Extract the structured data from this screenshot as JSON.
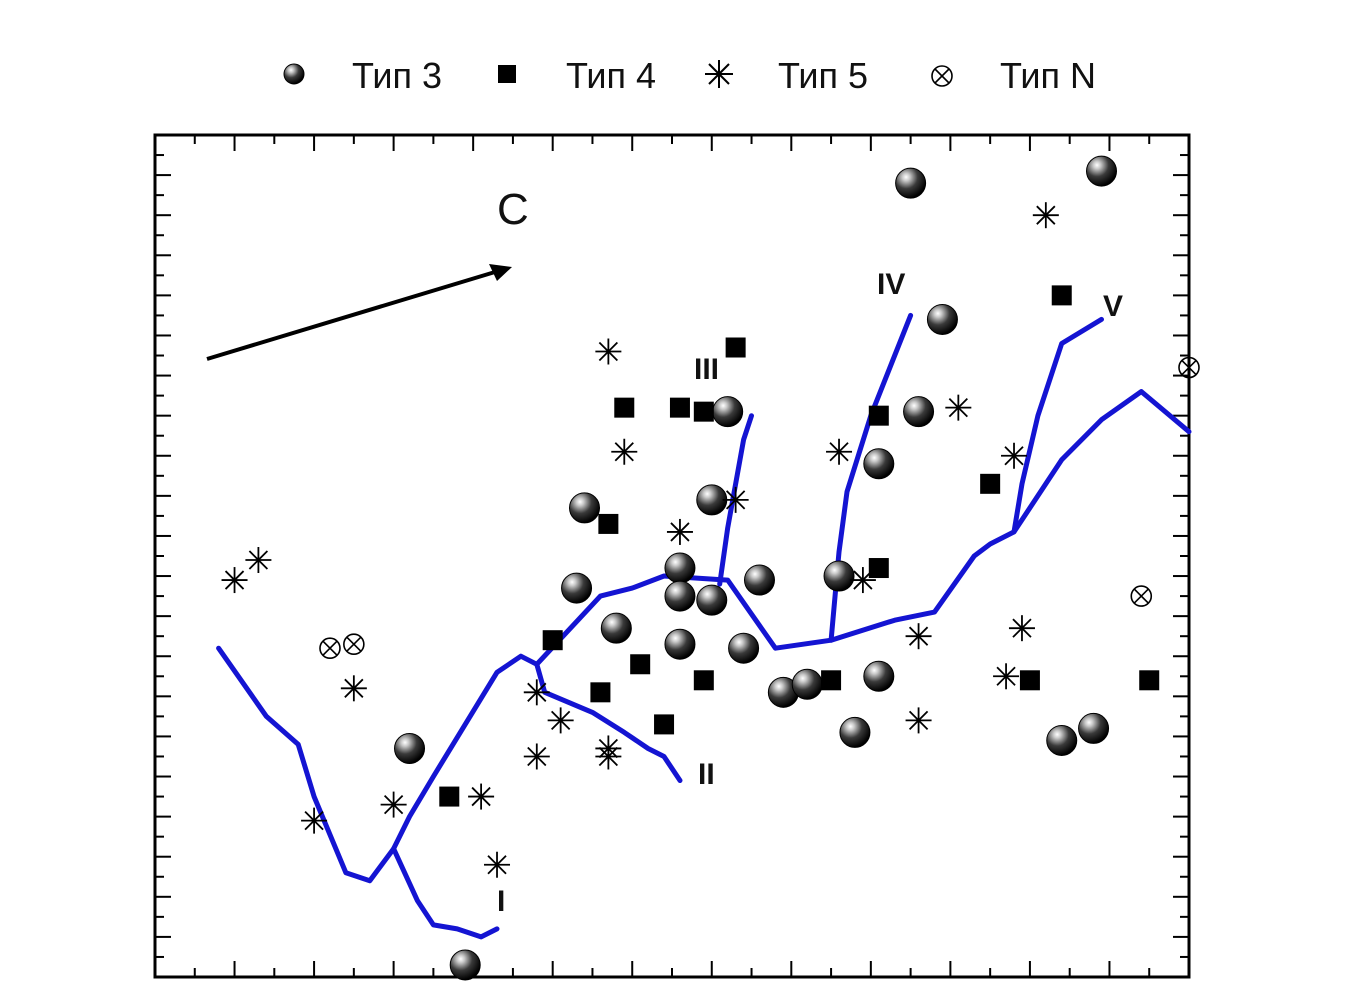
{
  "chart_data": {
    "type": "scatter",
    "title": "",
    "xlabel": "",
    "ylabel": "",
    "xlim": [
      0,
      13
    ],
    "ylim": [
      0,
      21
    ],
    "grid": false,
    "legend_position": "top",
    "tick_labels_shown": false,
    "legend": [
      {
        "label": "Тип 3",
        "marker": "sphere"
      },
      {
        "label": "Тип 4",
        "marker": "square"
      },
      {
        "label": "Тип 5",
        "marker": "asterisk"
      },
      {
        "label": "Тип N",
        "marker": "circle-x"
      }
    ],
    "series": [
      {
        "name": "Тип 3",
        "marker": "sphere",
        "points": [
          [
            9.5,
            19.8
          ],
          [
            11.9,
            20.1
          ],
          [
            9.9,
            16.4
          ],
          [
            7.2,
            14.1
          ],
          [
            9.6,
            14.1
          ],
          [
            9.1,
            12.8
          ],
          [
            5.4,
            11.7
          ],
          [
            7.0,
            11.9
          ],
          [
            6.6,
            10.2
          ],
          [
            5.3,
            9.7
          ],
          [
            8.6,
            10.0
          ],
          [
            7.6,
            9.9
          ],
          [
            6.6,
            9.5
          ],
          [
            7.0,
            9.4
          ],
          [
            5.8,
            8.7
          ],
          [
            6.6,
            8.3
          ],
          [
            7.4,
            8.2
          ],
          [
            7.9,
            7.1
          ],
          [
            8.2,
            7.3
          ],
          [
            9.1,
            7.5
          ],
          [
            8.8,
            6.1
          ],
          [
            3.2,
            5.7
          ],
          [
            11.4,
            5.9
          ],
          [
            11.8,
            6.2
          ],
          [
            3.9,
            0.3
          ]
        ]
      },
      {
        "name": "Тип 4",
        "marker": "square",
        "points": [
          [
            7.3,
            15.7
          ],
          [
            5.9,
            14.2
          ],
          [
            6.6,
            14.2
          ],
          [
            6.9,
            14.1
          ],
          [
            9.1,
            14.0
          ],
          [
            11.4,
            17.0
          ],
          [
            10.5,
            12.3
          ],
          [
            5.7,
            11.3
          ],
          [
            9.1,
            10.2
          ],
          [
            5.0,
            8.4
          ],
          [
            6.1,
            7.8
          ],
          [
            5.6,
            7.1
          ],
          [
            6.9,
            7.4
          ],
          [
            8.5,
            7.4
          ],
          [
            11.0,
            7.4
          ],
          [
            12.5,
            7.4
          ],
          [
            6.4,
            6.3
          ],
          [
            3.7,
            4.5
          ]
        ]
      },
      {
        "name": "Тип 5",
        "marker": "asterisk",
        "points": [
          [
            11.2,
            19.0
          ],
          [
            5.7,
            15.6
          ],
          [
            5.9,
            13.1
          ],
          [
            8.6,
            13.1
          ],
          [
            10.1,
            14.2
          ],
          [
            10.8,
            13.0
          ],
          [
            7.3,
            11.9
          ],
          [
            6.6,
            11.1
          ],
          [
            1.0,
            9.9
          ],
          [
            1.3,
            10.4
          ],
          [
            8.9,
            9.9
          ],
          [
            9.6,
            8.5
          ],
          [
            10.9,
            8.7
          ],
          [
            10.7,
            7.5
          ],
          [
            2.5,
            7.2
          ],
          [
            4.8,
            7.1
          ],
          [
            5.1,
            6.4
          ],
          [
            4.8,
            5.5
          ],
          [
            5.7,
            5.7
          ],
          [
            5.7,
            5.5
          ],
          [
            9.6,
            6.4
          ],
          [
            3.0,
            4.3
          ],
          [
            4.1,
            4.5
          ],
          [
            2.0,
            3.9
          ],
          [
            4.3,
            2.8
          ]
        ]
      },
      {
        "name": "Тип N",
        "marker": "circle-x",
        "points": [
          [
            13.0,
            15.2
          ],
          [
            12.4,
            9.5
          ],
          [
            2.2,
            8.2
          ],
          [
            2.5,
            8.3
          ]
        ]
      }
    ],
    "lines": [
      {
        "color": "#1414d2",
        "points": [
          [
            0.8,
            8.2
          ],
          [
            1.4,
            6.5
          ],
          [
            1.8,
            5.8
          ],
          [
            2.0,
            4.5
          ],
          [
            2.4,
            2.6
          ],
          [
            2.7,
            2.4
          ],
          [
            3.0,
            3.2
          ],
          [
            3.2,
            4.0
          ],
          [
            3.5,
            5.0
          ],
          [
            4.3,
            7.6
          ],
          [
            4.6,
            8.0
          ],
          [
            4.8,
            7.8
          ],
          [
            5.6,
            9.5
          ],
          [
            6.0,
            9.7
          ],
          [
            6.4,
            10.0
          ],
          [
            7.2,
            9.9
          ],
          [
            7.8,
            8.2
          ],
          [
            8.5,
            8.4
          ],
          [
            9.3,
            8.9
          ],
          [
            9.8,
            9.1
          ],
          [
            10.3,
            10.5
          ],
          [
            10.5,
            10.8
          ],
          [
            10.8,
            11.1
          ],
          [
            11.4,
            12.9
          ],
          [
            11.9,
            13.9
          ],
          [
            12.4,
            14.6
          ],
          [
            13.0,
            13.6
          ]
        ]
      },
      {
        "color": "#1414d2",
        "points": [
          [
            3.0,
            3.2
          ],
          [
            3.3,
            1.9
          ],
          [
            3.5,
            1.3
          ],
          [
            3.8,
            1.2
          ],
          [
            4.1,
            1.0
          ],
          [
            4.3,
            1.2
          ]
        ]
      },
      {
        "color": "#1414d2",
        "points": [
          [
            4.8,
            7.8
          ],
          [
            4.9,
            7.1
          ],
          [
            5.5,
            6.6
          ],
          [
            5.9,
            6.1
          ],
          [
            6.2,
            5.7
          ],
          [
            6.4,
            5.5
          ],
          [
            6.6,
            4.9
          ]
        ]
      },
      {
        "color": "#1414d2",
        "points": [
          [
            7.1,
            9.8
          ],
          [
            7.2,
            11.2
          ],
          [
            7.4,
            13.4
          ],
          [
            7.5,
            14.0
          ]
        ]
      },
      {
        "color": "#1414d2",
        "points": [
          [
            8.5,
            8.4
          ],
          [
            8.6,
            10.6
          ],
          [
            8.7,
            12.1
          ],
          [
            9.0,
            14.0
          ],
          [
            9.5,
            16.5
          ]
        ]
      },
      {
        "color": "#1414d2",
        "points": [
          [
            10.8,
            11.1
          ],
          [
            10.9,
            12.3
          ],
          [
            11.1,
            14.0
          ],
          [
            11.4,
            15.8
          ],
          [
            11.9,
            16.4
          ]
        ]
      }
    ],
    "annotations": [
      {
        "text": "С",
        "kind": "direction-label"
      },
      {
        "text": "I",
        "kind": "branch-label"
      },
      {
        "text": "II",
        "kind": "branch-label"
      },
      {
        "text": "III",
        "kind": "branch-label"
      },
      {
        "text": "IV",
        "kind": "branch-label"
      },
      {
        "text": "V",
        "kind": "branch-label"
      }
    ]
  }
}
